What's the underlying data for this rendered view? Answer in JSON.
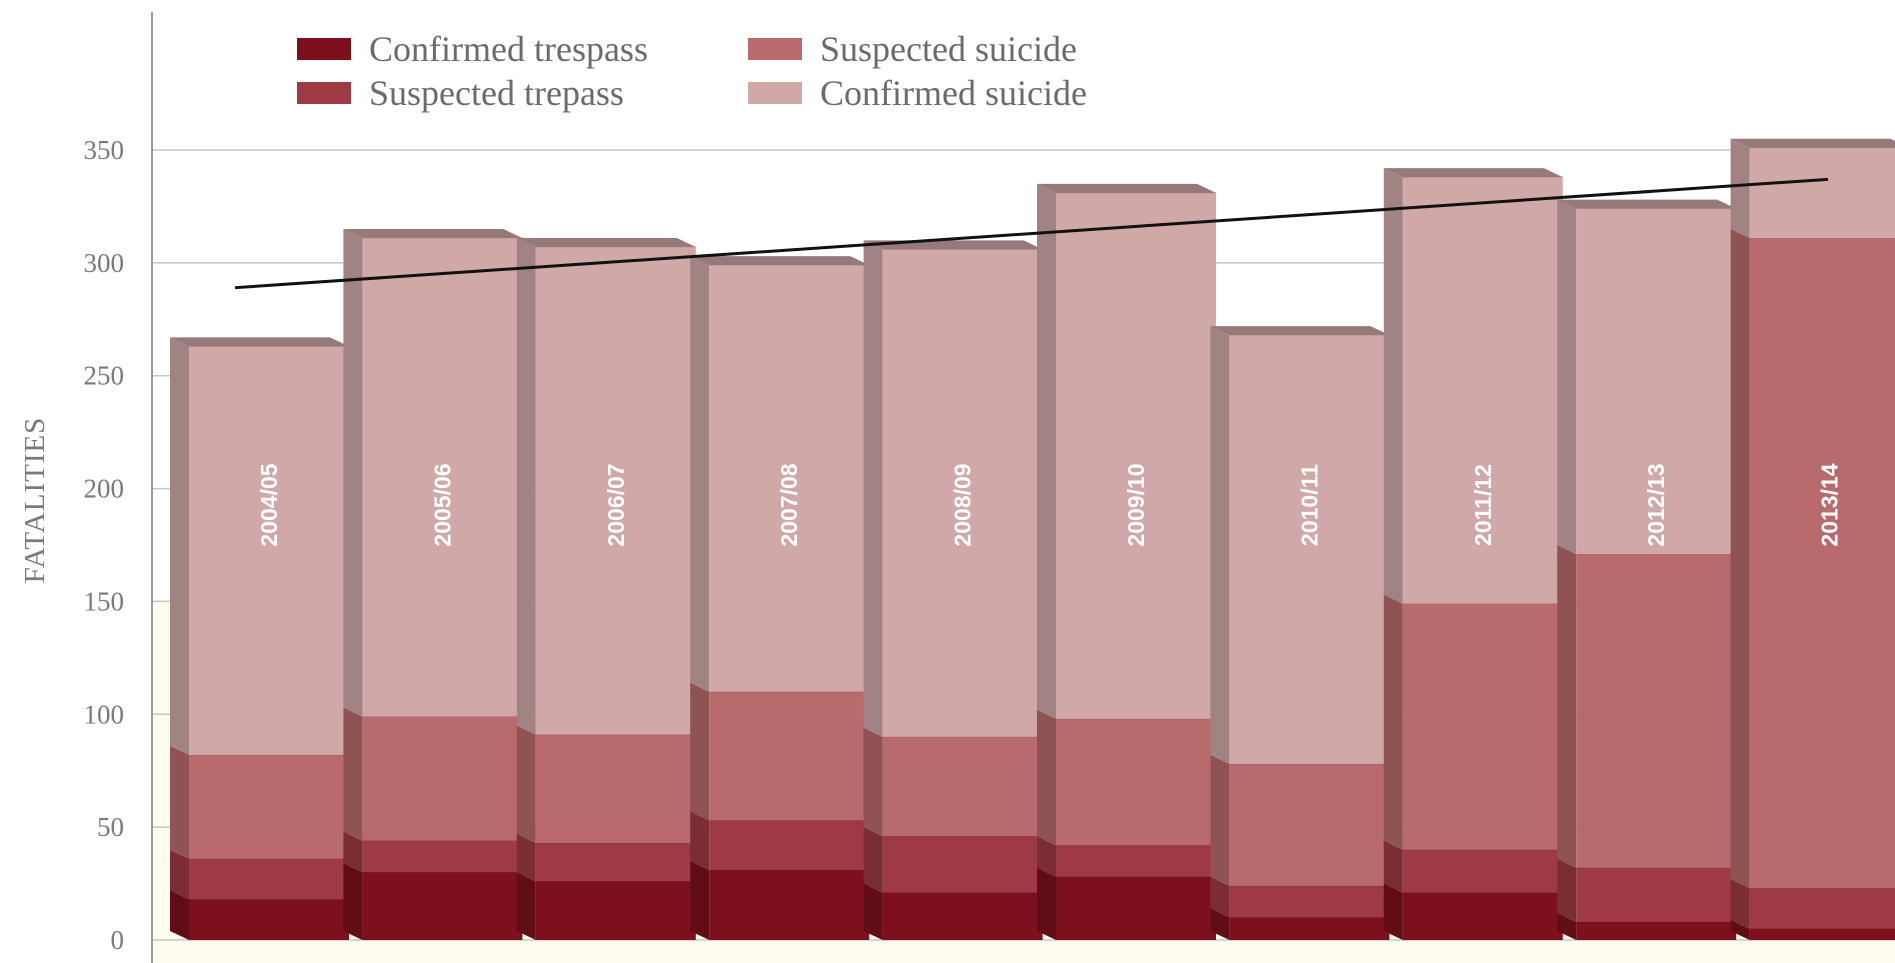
{
  "chart_data": {
    "type": "bar",
    "stacked": true,
    "title": "",
    "xlabel": "",
    "ylabel": "FATALITIES",
    "ylim": [
      0,
      350
    ],
    "yticks": [
      0,
      50,
      100,
      150,
      200,
      250,
      300,
      350
    ],
    "grid": true,
    "legend_position": "top-left",
    "categories": [
      "2004/05",
      "2005/06",
      "2006/07",
      "2007/08",
      "2008/09",
      "2009/10",
      "2010/11",
      "2011/12",
      "2012/13",
      "2013/14"
    ],
    "series": [
      {
        "name": "Confirmed trespass",
        "color": "#7c111d",
        "values": [
          18,
          30,
          26,
          31,
          21,
          28,
          10,
          21,
          8,
          5
        ]
      },
      {
        "name": "Suspected trepass",
        "color": "#9e3a43",
        "values": [
          18,
          14,
          17,
          22,
          25,
          14,
          14,
          19,
          24,
          18
        ]
      },
      {
        "name": "Suspected suicide",
        "color": "#b86a6d",
        "values": [
          46,
          55,
          48,
          57,
          44,
          56,
          54,
          109,
          139,
          288
        ]
      },
      {
        "name": "Confirmed suicide",
        "color": "#d0a8a8",
        "values": [
          181,
          212,
          216,
          189,
          216,
          233,
          190,
          189,
          153,
          40
        ]
      }
    ],
    "trendline": {
      "start": 289,
      "end": 337,
      "color": "#111111"
    }
  }
}
